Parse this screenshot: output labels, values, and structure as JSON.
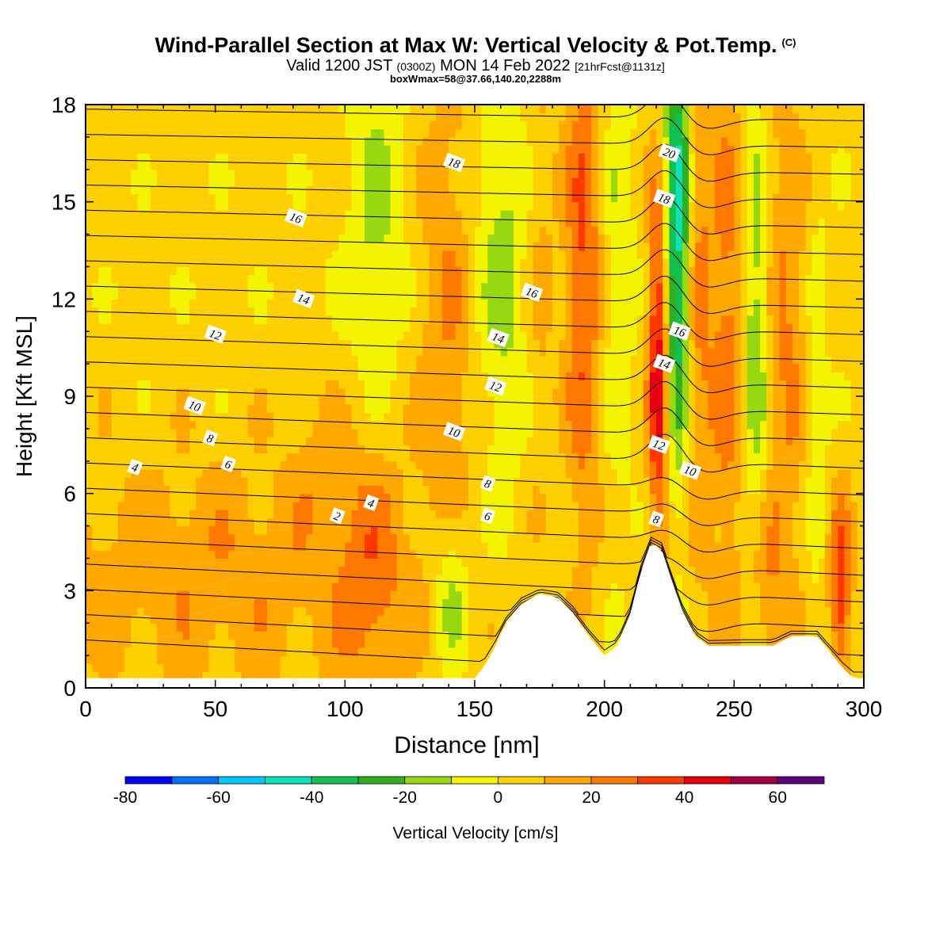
{
  "header": {
    "title": "Wind-Parallel Section at Max W: Vertical Velocity & Pot.Temp.",
    "title_mark": "(C)",
    "valid_prefix": "Valid 1200 JST",
    "valid_utc": "(0300Z)",
    "valid_date": "MON 14 Feb 2022",
    "forecast_info": "[21hrFcst@1131z]",
    "box_info": "boxWmax=58@37.66,140.20,2288m"
  },
  "chart_data": {
    "type": "heatmap",
    "xlabel": "Distance [nm]",
    "ylabel": "Height [Kft MSL]",
    "xlim": [
      0,
      300
    ],
    "ylim": [
      0,
      18
    ],
    "x_ticks": [
      0,
      50,
      100,
      150,
      200,
      250,
      300
    ],
    "y_ticks": [
      0,
      3,
      6,
      9,
      12,
      15,
      18
    ],
    "colorbar": {
      "label": "Vertical Velocity [cm/s]",
      "bounds": [
        -80,
        -70,
        -60,
        -50,
        -40,
        -30,
        -20,
        -10,
        0,
        10,
        20,
        30,
        40,
        50,
        60,
        70
      ],
      "tick_labels": [
        -80,
        -60,
        -40,
        -20,
        0,
        20,
        40,
        60
      ],
      "colors": [
        "#0000f5",
        "#0070ff",
        "#00c8ff",
        "#10e0b8",
        "#10c050",
        "#30b020",
        "#98d810",
        "#f4f400",
        "#ffd000",
        "#ffa800",
        "#ff7800",
        "#ff3800",
        "#e80010",
        "#a00040",
        "#600080"
      ]
    },
    "terrain": [
      {
        "x": 0,
        "h": 0.3
      },
      {
        "x": 150,
        "h": 0.3
      },
      {
        "x": 154,
        "h": 0.7
      },
      {
        "x": 158,
        "h": 1.3
      },
      {
        "x": 162,
        "h": 2.0
      },
      {
        "x": 168,
        "h": 2.6
      },
      {
        "x": 175,
        "h": 2.9
      },
      {
        "x": 182,
        "h": 2.8
      },
      {
        "x": 188,
        "h": 2.3
      },
      {
        "x": 194,
        "h": 1.6
      },
      {
        "x": 200,
        "h": 1.0
      },
      {
        "x": 205,
        "h": 1.3
      },
      {
        "x": 210,
        "h": 2.3
      },
      {
        "x": 214,
        "h": 3.6
      },
      {
        "x": 218,
        "h": 4.5
      },
      {
        "x": 222,
        "h": 4.3
      },
      {
        "x": 226,
        "h": 3.3
      },
      {
        "x": 230,
        "h": 2.4
      },
      {
        "x": 235,
        "h": 1.6
      },
      {
        "x": 240,
        "h": 1.3
      },
      {
        "x": 265,
        "h": 1.3
      },
      {
        "x": 272,
        "h": 1.6
      },
      {
        "x": 282,
        "h": 1.6
      },
      {
        "x": 288,
        "h": 1.0
      },
      {
        "x": 292,
        "h": 0.6
      },
      {
        "x": 296,
        "h": 0.3
      },
      {
        "x": 300,
        "h": 0.3
      }
    ],
    "w_features": [
      {
        "x": 50,
        "z": 3.5,
        "sx": 50,
        "sz": 2.5,
        "w": 14
      },
      {
        "x": 110,
        "z": 3.5,
        "sx": 9,
        "sz": 3,
        "w": 18
      },
      {
        "x": 90,
        "z": 7,
        "sx": 8,
        "sz": 1.5,
        "w": 8
      },
      {
        "x": 112,
        "z": 14.5,
        "sx": 8,
        "sz": 4,
        "w": -16
      },
      {
        "x": 140,
        "z": 11,
        "sx": 8,
        "sz": 6,
        "w": 16
      },
      {
        "x": 160,
        "z": 13,
        "sx": 8,
        "sz": 5,
        "w": -18
      },
      {
        "x": 141,
        "z": 3,
        "sx": 5,
        "sz": 2,
        "w": -22
      },
      {
        "x": 175,
        "z": 13,
        "sx": 4,
        "sz": 5,
        "w": 10
      },
      {
        "x": 192,
        "z": 13,
        "sx": 5,
        "sz": 6,
        "w": 28
      },
      {
        "x": 205,
        "z": 13,
        "sx": 5,
        "sz": 6,
        "w": -12
      },
      {
        "x": 221,
        "z": 10,
        "sx": 3,
        "sz": 4,
        "w": 45
      },
      {
        "x": 228,
        "z": 14,
        "sx": 3.5,
        "sz": 5,
        "w": -52
      },
      {
        "x": 236,
        "z": 12,
        "sx": 4,
        "sz": 6,
        "w": 18
      },
      {
        "x": 248,
        "z": 11,
        "sx": 5,
        "sz": 6,
        "w": 22
      },
      {
        "x": 258,
        "z": 11,
        "sx": 4,
        "sz": 5,
        "w": -25
      },
      {
        "x": 270,
        "z": 11,
        "sx": 6,
        "sz": 6,
        "w": 18
      },
      {
        "x": 282,
        "z": 9,
        "sx": 3,
        "sz": 5,
        "w": -12
      },
      {
        "x": 291,
        "z": 3,
        "sx": 3,
        "sz": 2,
        "w": 35
      },
      {
        "x": 262,
        "z": 3,
        "sx": 5,
        "sz": 2,
        "w": 15
      }
    ],
    "theta_contours": {
      "levels": [
        1,
        2,
        3,
        4,
        5,
        6,
        7,
        8,
        9,
        10,
        11,
        12,
        13,
        14,
        15,
        16,
        17,
        18,
        19,
        20,
        21,
        22
      ],
      "labels": [
        {
          "text": "2",
          "x": 97,
          "z": 5.3
        },
        {
          "text": "4",
          "x": 19,
          "z": 6.8
        },
        {
          "text": "4",
          "x": 110,
          "z": 5.7
        },
        {
          "text": "6",
          "x": 55,
          "z": 6.9
        },
        {
          "text": "6",
          "x": 155,
          "z": 5.3
        },
        {
          "text": "8",
          "x": 48,
          "z": 7.7
        },
        {
          "text": "8",
          "x": 155,
          "z": 6.3
        },
        {
          "text": "8",
          "x": 220,
          "z": 5.2
        },
        {
          "text": "10",
          "x": 42,
          "z": 8.7
        },
        {
          "text": "10",
          "x": 142,
          "z": 7.9
        },
        {
          "text": "10",
          "x": 233,
          "z": 6.7
        },
        {
          "text": "12",
          "x": 50,
          "z": 10.9
        },
        {
          "text": "12",
          "x": 158,
          "z": 9.3
        },
        {
          "text": "12",
          "x": 221,
          "z": 7.5
        },
        {
          "text": "14",
          "x": 84,
          "z": 12.0
        },
        {
          "text": "14",
          "x": 159,
          "z": 10.8
        },
        {
          "text": "14",
          "x": 223,
          "z": 10.0
        },
        {
          "text": "16",
          "x": 81,
          "z": 14.5
        },
        {
          "text": "16",
          "x": 172,
          "z": 12.2
        },
        {
          "text": "16",
          "x": 229,
          "z": 11.0
        },
        {
          "text": "18",
          "x": 142,
          "z": 16.2
        },
        {
          "text": "18",
          "x": 223,
          "z": 15.1
        },
        {
          "text": "20",
          "x": 225,
          "z": 16.5
        }
      ]
    }
  }
}
